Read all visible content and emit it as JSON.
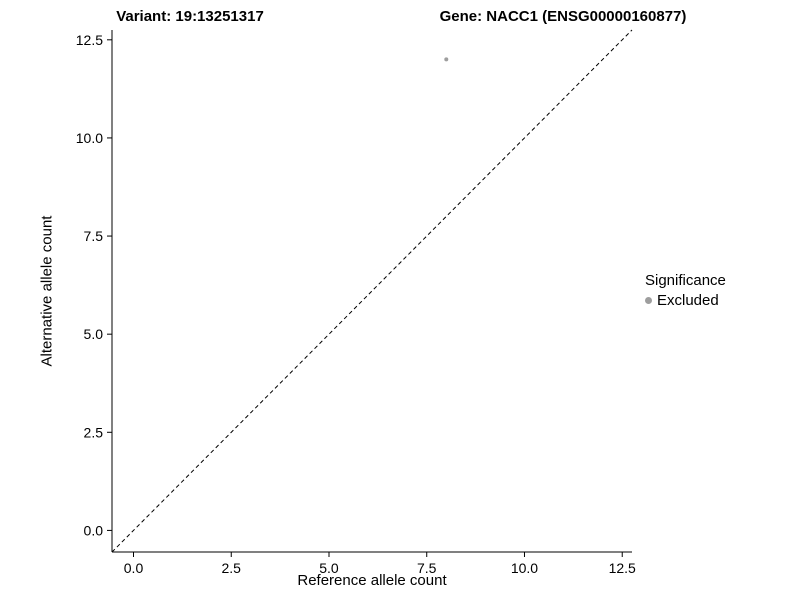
{
  "chart_data": {
    "type": "scatter",
    "title_left": "Variant: 19:13251317",
    "title_right": "Gene: NACC1 (ENSG00000160877)",
    "xlabel": "Reference allele count",
    "ylabel": "Alternative allele count",
    "xlim": [
      -0.55,
      12.75
    ],
    "ylim": [
      -0.55,
      12.75
    ],
    "xticks": [
      0.0,
      2.5,
      5.0,
      7.5,
      10.0,
      12.5
    ],
    "yticks": [
      0.0,
      2.5,
      5.0,
      7.5,
      10.0,
      12.5
    ],
    "xtick_labels": [
      "0.0",
      "2.5",
      "5.0",
      "7.5",
      "10.0",
      "12.5"
    ],
    "ytick_labels": [
      "0.0",
      "2.5",
      "5.0",
      "7.5",
      "10.0",
      "12.5"
    ],
    "grid": false,
    "axis_color": "#000000",
    "identity_line": {
      "style": "dashed",
      "color": "#000000",
      "from": [
        -0.55,
        -0.55
      ],
      "to": [
        12.75,
        12.75
      ]
    },
    "series": [
      {
        "name": "Excluded",
        "color": "#9e9e9e",
        "point_radius": 2,
        "points": [
          [
            8,
            12
          ]
        ]
      }
    ],
    "legend": {
      "title": "Significance",
      "position": "right",
      "items": [
        {
          "label": "Excluded",
          "color": "#9e9e9e"
        }
      ]
    }
  }
}
